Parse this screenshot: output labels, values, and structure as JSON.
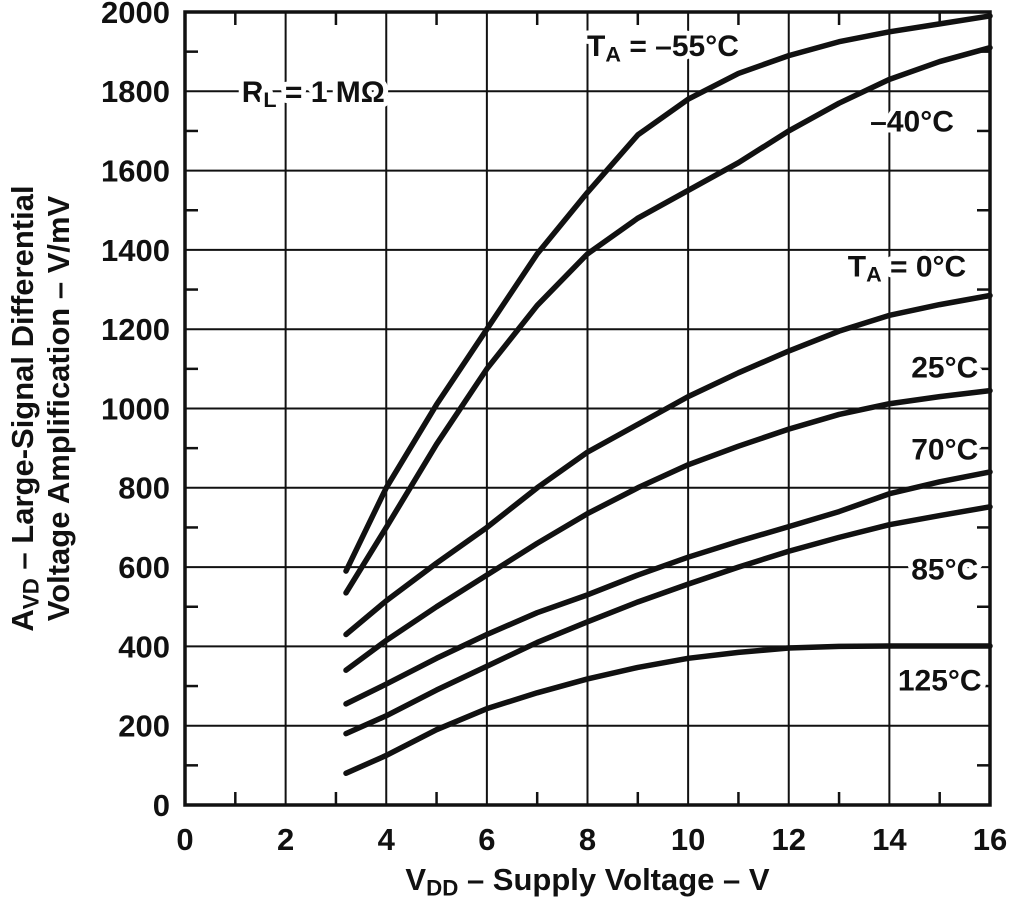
{
  "figure": {
    "description": "Large-signal differential voltage amplification vs supply voltage at multiple free-air temperatures",
    "condition_label": "RL = 1 MΩ"
  },
  "chart_data": {
    "type": "line",
    "title": "",
    "xlabel": "VDD – Supply Voltage – V",
    "ylabel": "AVD – Large-Signal Differential Voltage Amplification – V/mV",
    "ylabel_line1": "AVD – Large-Signal Differential",
    "ylabel_line2": "Voltage Amplification – V/mV",
    "xlim": [
      0,
      16
    ],
    "ylim": [
      0,
      2000
    ],
    "x_ticks": [
      0,
      2,
      4,
      6,
      8,
      10,
      12,
      14,
      16
    ],
    "y_ticks": [
      0,
      200,
      400,
      600,
      800,
      1000,
      1200,
      1400,
      1600,
      1800,
      2000
    ],
    "x_minor_step": 1,
    "y_minor_step": 100,
    "grid": true,
    "legend_position": "inline-labels",
    "colors": {
      "ink": "#111111",
      "background": "#ffffff"
    },
    "xlabel_segments": [
      {
        "t": "V"
      },
      {
        "t": "DD",
        "sub": true
      },
      {
        "t": " – Supply Voltage – V"
      }
    ],
    "ylabel_segments_line1": [
      {
        "t": "A"
      },
      {
        "t": "VD",
        "sub": true
      },
      {
        "t": " – Large-Signal Differential"
      }
    ],
    "ylabel_segments_line2": [
      {
        "t": "Voltage Amplification – V/mV"
      }
    ],
    "annotation": {
      "text": "RL = 1 MΩ",
      "segments": [
        {
          "t": "R"
        },
        {
          "t": "L",
          "sub": true
        },
        {
          "t": " = 1 MΩ"
        }
      ],
      "x": 2.55,
      "y": 1800
    },
    "x": [
      3.2,
      4,
      5,
      6,
      7,
      8,
      9,
      10,
      11,
      12,
      13,
      14,
      15,
      16
    ],
    "series": [
      {
        "name": "TA = –55°C",
        "label_segments": [
          {
            "t": "T"
          },
          {
            "t": "A",
            "sub": true
          },
          {
            "t": " = –55°C"
          }
        ],
        "label_x": 9.5,
        "label_y": 1915,
        "values": [
          590,
          800,
          1010,
          1200,
          1390,
          1545,
          1690,
          1780,
          1845,
          1890,
          1925,
          1950,
          1970,
          1990
        ]
      },
      {
        "name": "–40°C",
        "label_segments": [
          {
            "t": "–40°C"
          }
        ],
        "label_x": 14.45,
        "label_y": 1725,
        "values": [
          535,
          700,
          910,
          1100,
          1260,
          1390,
          1480,
          1550,
          1620,
          1700,
          1770,
          1830,
          1875,
          1910
        ]
      },
      {
        "name": "TA = 0°C",
        "label_segments": [
          {
            "t": "T"
          },
          {
            "t": "A",
            "sub": true
          },
          {
            "t": " = 0°C"
          }
        ],
        "label_x": 14.35,
        "label_y": 1360,
        "values": [
          430,
          515,
          610,
          700,
          800,
          890,
          960,
          1030,
          1090,
          1145,
          1195,
          1235,
          1262,
          1285
        ]
      },
      {
        "name": "25°C",
        "label_segments": [
          {
            "t": "25°C"
          }
        ],
        "label_x": 15.1,
        "label_y": 1105,
        "values": [
          340,
          415,
          500,
          580,
          660,
          735,
          800,
          858,
          905,
          948,
          985,
          1012,
          1030,
          1045
        ]
      },
      {
        "name": "70°C",
        "label_segments": [
          {
            "t": "70°C"
          }
        ],
        "label_x": 15.1,
        "label_y": 898,
        "values": [
          255,
          305,
          370,
          430,
          485,
          530,
          580,
          625,
          665,
          702,
          740,
          785,
          815,
          840
        ]
      },
      {
        "name": "85°C",
        "label_segments": [
          {
            "t": "85°C"
          }
        ],
        "label_x": 15.1,
        "label_y": 595,
        "values": [
          180,
          225,
          290,
          350,
          410,
          462,
          512,
          557,
          600,
          640,
          675,
          707,
          730,
          752
        ]
      },
      {
        "name": "125°C",
        "label_segments": [
          {
            "t": "125°C"
          }
        ],
        "label_x": 15.0,
        "label_y": 315,
        "values": [
          80,
          125,
          190,
          243,
          283,
          318,
          347,
          370,
          385,
          396,
          400,
          401,
          401,
          401
        ]
      }
    ]
  }
}
